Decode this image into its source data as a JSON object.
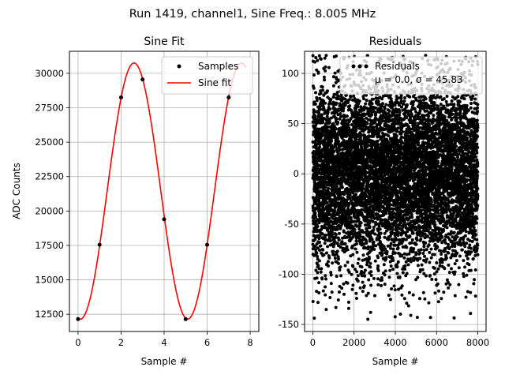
{
  "suptitle": "Run 1419, channel1, Sine Freq.: 8.005 MHz",
  "chart_data": [
    {
      "type": "scatter+line",
      "title": "Sine Fit",
      "xlabel": "Sample #",
      "ylabel": "ADC Counts",
      "xlim": [
        -0.4,
        8.4
      ],
      "ylim": [
        11250,
        31600
      ],
      "xticks": [
        0,
        2,
        4,
        6,
        8
      ],
      "yticks": [
        12500,
        15000,
        17500,
        20000,
        22500,
        25000,
        27500,
        30000
      ],
      "grid": true,
      "legend": "upper-right",
      "sine_fit": {
        "amplitude": 9300,
        "offset": 21450,
        "period": 4.99,
        "peak_x": 2.6,
        "x_range": [
          0,
          7.8
        ]
      },
      "series": [
        {
          "name": "Samples",
          "kind": "scatter",
          "color": "#000000",
          "x": [
            0,
            1,
            2,
            3,
            4,
            5,
            6,
            7
          ],
          "y": [
            12150,
            17550,
            28250,
            29550,
            19400,
            12150,
            17550,
            28250
          ]
        },
        {
          "name": "Sine fit",
          "kind": "line",
          "color": "#ff0000"
        }
      ]
    },
    {
      "type": "scatter",
      "title": "Residuals",
      "xlabel": "Sample #",
      "xlim": [
        -400,
        8400
      ],
      "ylim": [
        -157,
        122
      ],
      "xticks": [
        0,
        2000,
        4000,
        6000,
        8000
      ],
      "yticks": [
        -150,
        -100,
        -50,
        0,
        50,
        100
      ],
      "grid": true,
      "legend": "upper-right",
      "series": [
        {
          "name": "Residuals",
          "kind": "scatter",
          "color": "#000000",
          "legend_line2": "μ = 0.0, σ = 45.83",
          "n_points": 8000,
          "mean": 0.0,
          "std": 45.83,
          "x_range": [
            0,
            8000
          ]
        }
      ]
    }
  ]
}
